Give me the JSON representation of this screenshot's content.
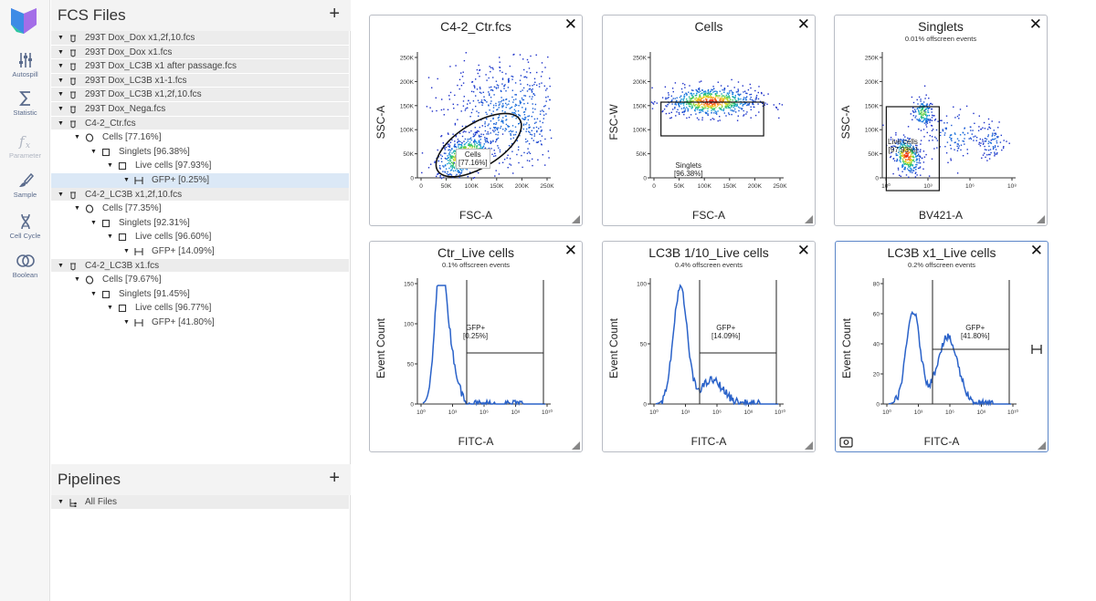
{
  "rail": {
    "items": [
      {
        "label": "Autospill",
        "icon": "sliders-icon",
        "disabled": false
      },
      {
        "label": "Statistic",
        "icon": "sigma-icon",
        "disabled": false
      },
      {
        "label": "Parameter",
        "icon": "fx-icon",
        "disabled": true
      },
      {
        "label": "Sample",
        "icon": "brush-icon",
        "disabled": false
      },
      {
        "label": "Cell Cycle",
        "icon": "dna-icon",
        "disabled": false
      },
      {
        "label": "Boolean",
        "icon": "rings-icon",
        "disabled": false
      }
    ]
  },
  "fcs_panel": {
    "title": "FCS Files",
    "add": "+",
    "tree": [
      {
        "level": 0,
        "kind": "file",
        "label": "293T Dox_Dox x1,2f,10.fcs"
      },
      {
        "level": 0,
        "kind": "file",
        "label": "293T Dox_Dox x1.fcs"
      },
      {
        "level": 0,
        "kind": "file",
        "label": "293T Dox_LC3B x1 after passage.fcs"
      },
      {
        "level": 0,
        "kind": "file",
        "label": "293T Dox_LC3B x1-1.fcs"
      },
      {
        "level": 0,
        "kind": "file",
        "label": "293T Dox_LC3B x1,2f,10.fcs"
      },
      {
        "level": 0,
        "kind": "file",
        "label": "293T Dox_Nega.fcs"
      },
      {
        "level": 0,
        "kind": "file",
        "label": "C4-2_Ctr.fcs"
      },
      {
        "level": 1,
        "kind": "ellipse",
        "label": "Cells [77.16%]"
      },
      {
        "level": 2,
        "kind": "rect",
        "label": "Singlets [96.38%]"
      },
      {
        "level": 3,
        "kind": "rect",
        "label": "Live cells [97.93%]"
      },
      {
        "level": 4,
        "kind": "range",
        "label": "GFP+ [0.25%]",
        "selected": true
      },
      {
        "level": 0,
        "kind": "file",
        "label": "C4-2_LC3B x1,2f,10.fcs"
      },
      {
        "level": 1,
        "kind": "ellipse",
        "label": "Cells [77.35%]"
      },
      {
        "level": 2,
        "kind": "rect",
        "label": "Singlets [92.31%]"
      },
      {
        "level": 3,
        "kind": "rect",
        "label": "Live cells [96.60%]"
      },
      {
        "level": 4,
        "kind": "range",
        "label": "GFP+ [14.09%]"
      },
      {
        "level": 0,
        "kind": "file",
        "label": "C4-2_LC3B x1.fcs"
      },
      {
        "level": 1,
        "kind": "ellipse",
        "label": "Cells [79.67%]"
      },
      {
        "level": 2,
        "kind": "rect",
        "label": "Singlets [91.45%]"
      },
      {
        "level": 3,
        "kind": "rect",
        "label": "Live cells [96.77%]"
      },
      {
        "level": 4,
        "kind": "range",
        "label": "GFP+ [41.80%]"
      }
    ]
  },
  "pipelines_panel": {
    "title": "Pipelines",
    "add": "+",
    "all_files": "All Files"
  },
  "plots": [
    {
      "title": "C4-2_Ctr.fcs",
      "subtitle": "",
      "xlabel": "FSC-A",
      "ylabel": "SSC-A",
      "yticks": [
        "250K",
        "200K",
        "150K",
        "100K",
        "50K",
        "0"
      ],
      "xticks": [
        "0",
        "50K",
        "100K",
        "150K",
        "200K",
        "250K"
      ],
      "gate": {
        "name": "Cells",
        "pct": "[77.16%]"
      }
    },
    {
      "title": "Cells",
      "subtitle": "",
      "xlabel": "FSC-A",
      "ylabel": "FSC-W",
      "yticks": [
        "250K",
        "200K",
        "150K",
        "100K",
        "50K",
        "0"
      ],
      "xticks": [
        "0",
        "50K",
        "100K",
        "150K",
        "200K",
        "250K"
      ],
      "gate": {
        "name": "Singlets",
        "pct": "[96.38%]"
      }
    },
    {
      "title": "Singlets",
      "subtitle": "0.01% offscreen events",
      "xlabel": "BV421-A",
      "ylabel": "SSC-A",
      "yticks": [
        "250K",
        "200K",
        "150K",
        "100K",
        "50K",
        "0"
      ],
      "xticks": [
        "10⁰",
        "10³",
        "10⁶",
        "10⁸"
      ],
      "gate": {
        "name": "Live cells",
        "pct": "[97.93%]"
      }
    },
    {
      "title": "Ctr_Live cells",
      "subtitle": "0.1% offscreen events",
      "xlabel": "FITC-A",
      "ylabel": "Event Count",
      "yticks": [
        "150",
        "100",
        "50",
        "0"
      ],
      "xticks": [
        "10⁰",
        "10³",
        "10⁶",
        "10⁸",
        "10¹⁰"
      ],
      "gate": {
        "name": "GFP+",
        "pct": "[0.25%]"
      }
    },
    {
      "title": "LC3B 1/10_Live cells",
      "subtitle": "0.4% offscreen events",
      "xlabel": "FITC-A",
      "ylabel": "Event Count",
      "yticks": [
        "100",
        "50",
        "0"
      ],
      "xticks": [
        "10⁰",
        "10³",
        "10⁶",
        "10⁸",
        "10¹⁰"
      ],
      "gate": {
        "name": "GFP+",
        "pct": "[14.09%]"
      }
    },
    {
      "title": "LC3B x1_Live cells",
      "subtitle": "0.2% offscreen events",
      "xlabel": "FITC-A",
      "ylabel": "Event Count",
      "yticks": [
        "80",
        "60",
        "40",
        "20",
        "0"
      ],
      "xticks": [
        "10⁰",
        "10³",
        "10⁶",
        "10⁸",
        "10¹⁰"
      ],
      "gate": {
        "name": "GFP+",
        "pct": "[41.80%]"
      }
    }
  ],
  "colors": {
    "accent": "#5b86c8",
    "histogram": "#2a62c9",
    "density_low": "#1c2bc8",
    "density_high": "#e8201a"
  }
}
